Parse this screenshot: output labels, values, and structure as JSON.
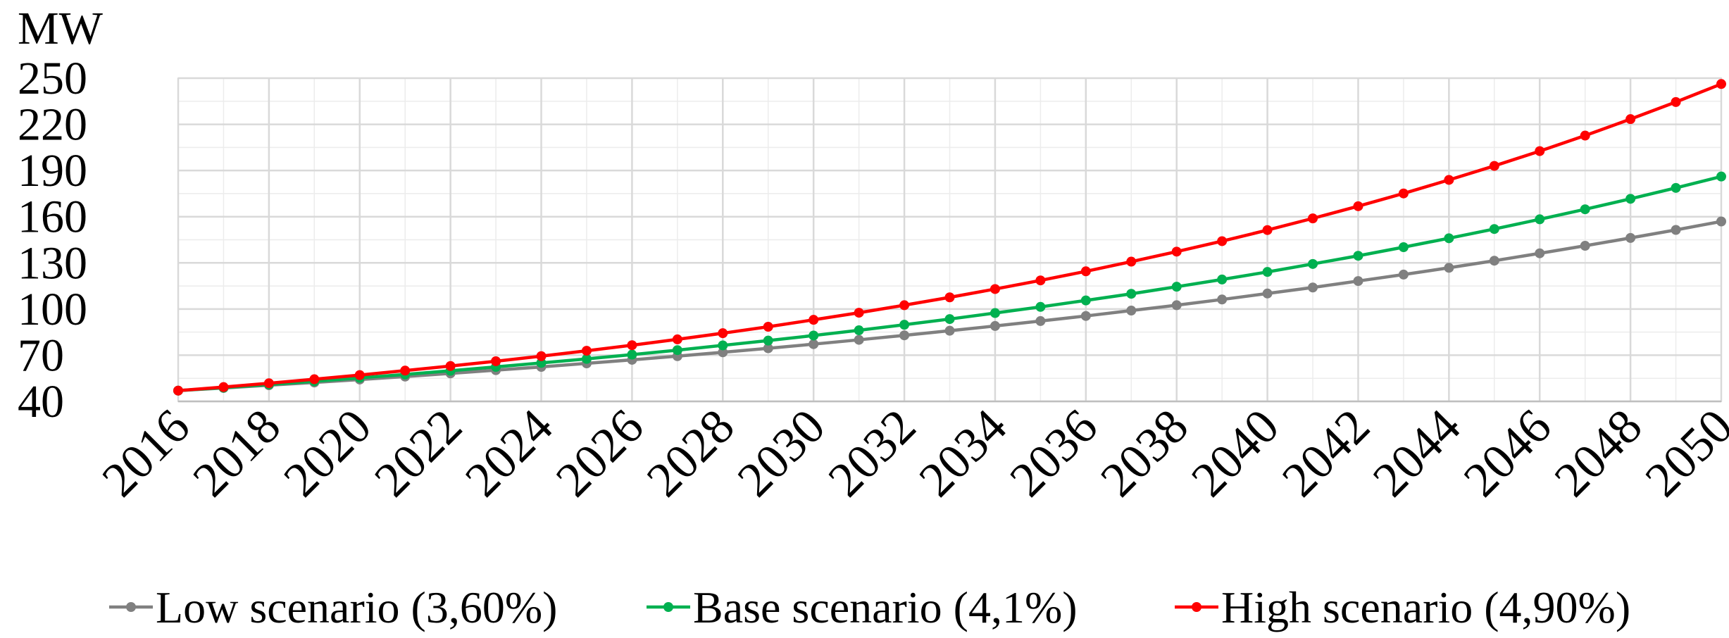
{
  "chart_data": {
    "type": "line",
    "ylabel": "MW",
    "x": [
      2016,
      2017,
      2018,
      2019,
      2020,
      2021,
      2022,
      2023,
      2024,
      2025,
      2026,
      2027,
      2028,
      2029,
      2030,
      2031,
      2032,
      2033,
      2034,
      2035,
      2036,
      2037,
      2038,
      2039,
      2040,
      2041,
      2042,
      2043,
      2044,
      2045,
      2046,
      2047,
      2048,
      2049,
      2050
    ],
    "series": [
      {
        "name": "Low scenario (3,60%)",
        "color": "#808080",
        "values": [
          47.0,
          48.7,
          50.5,
          52.3,
          54.2,
          56.1,
          58.2,
          60.3,
          62.4,
          64.7,
          67.0,
          69.4,
          71.9,
          74.5,
          77.2,
          80.0,
          82.9,
          85.9,
          89.0,
          92.2,
          95.5,
          99.0,
          102.5,
          106.2,
          110.1,
          114.0,
          118.2,
          122.4,
          126.8,
          131.4,
          136.2,
          141.1,
          146.2,
          151.4,
          156.9
        ]
      },
      {
        "name": "Base scenario (4,1%)",
        "color": "#00b050",
        "values": [
          47.0,
          48.9,
          51.0,
          53.1,
          55.3,
          57.5,
          59.9,
          62.4,
          65.0,
          67.6,
          70.4,
          73.3,
          76.4,
          79.5,
          82.8,
          86.2,
          89.8,
          93.5,
          97.4,
          101.4,
          105.6,
          109.9,
          114.5,
          119.2,
          124.1,
          129.3,
          134.6,
          140.2,
          146.0,
          152.0,
          158.3,
          164.8,
          171.6,
          178.7,
          186.1
        ]
      },
      {
        "name": "High scenario (4,90%)",
        "color": "#ff0000",
        "values": [
          47.0,
          49.3,
          51.8,
          54.4,
          57.1,
          60.0,
          63.0,
          66.1,
          69.4,
          72.9,
          76.5,
          80.3,
          84.3,
          88.5,
          93.0,
          97.6,
          102.5,
          107.6,
          113.0,
          118.6,
          124.5,
          130.8,
          137.3,
          144.1,
          151.3,
          158.9,
          166.8,
          175.1,
          183.9,
          193.0,
          202.6,
          212.7,
          223.4,
          234.5,
          246.2
        ]
      }
    ],
    "xlim": [
      2016,
      2050
    ],
    "xticks": [
      2016,
      2018,
      2020,
      2022,
      2024,
      2026,
      2028,
      2030,
      2032,
      2034,
      2036,
      2038,
      2040,
      2042,
      2044,
      2046,
      2048,
      2050
    ],
    "ylim": [
      40,
      250
    ],
    "yticks": [
      40,
      70,
      100,
      130,
      160,
      190,
      220,
      250
    ],
    "grid": true,
    "legend": "bottom"
  }
}
